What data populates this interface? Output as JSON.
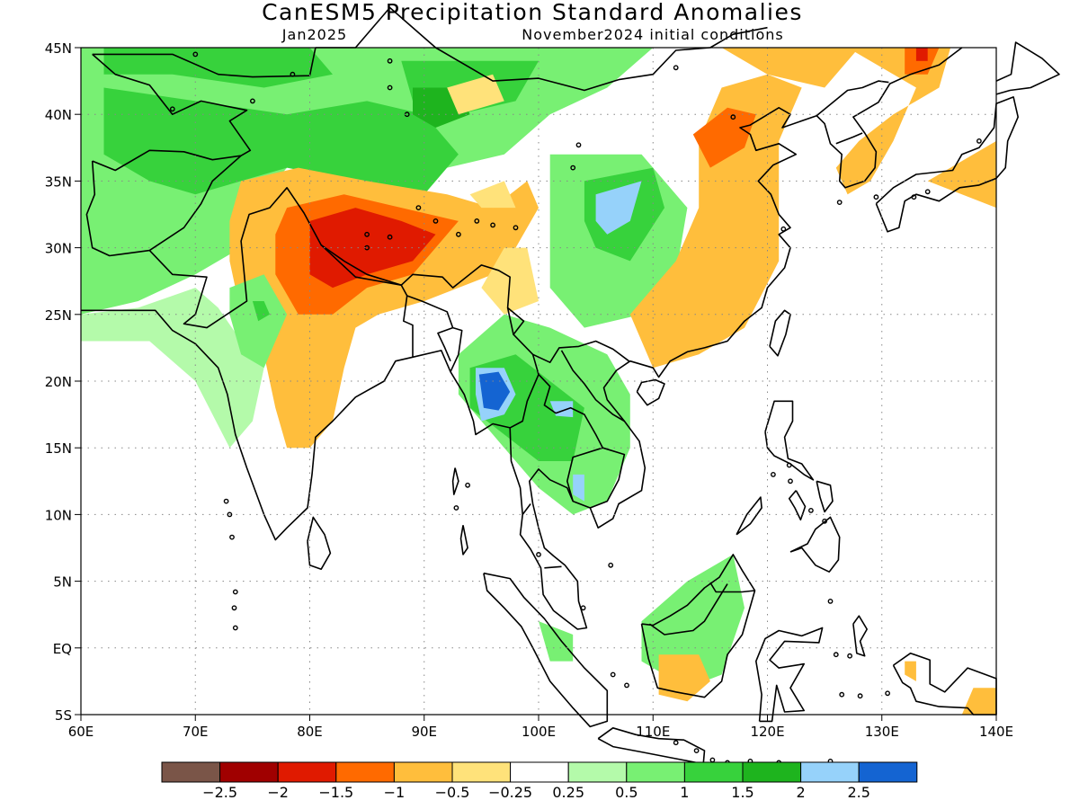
{
  "title": "CanESM5 Precipitation Standard Anomalies",
  "subtitle_left": "Jan2025",
  "subtitle_right": "November2024 initial conditions",
  "map": {
    "lon_range": [
      60,
      140
    ],
    "lat_range": [
      -5,
      45
    ],
    "lon_ticks": [
      {
        "v": 60,
        "label": "60E"
      },
      {
        "v": 70,
        "label": "70E"
      },
      {
        "v": 80,
        "label": "80E"
      },
      {
        "v": 90,
        "label": "90E"
      },
      {
        "v": 100,
        "label": "100E"
      },
      {
        "v": 110,
        "label": "110E"
      },
      {
        "v": 120,
        "label": "120E"
      },
      {
        "v": 130,
        "label": "130E"
      },
      {
        "v": 140,
        "label": "140E"
      }
    ],
    "lat_ticks": [
      {
        "v": 45,
        "label": "45N"
      },
      {
        "v": 40,
        "label": "40N"
      },
      {
        "v": 35,
        "label": "35N"
      },
      {
        "v": 30,
        "label": "30N"
      },
      {
        "v": 25,
        "label": "25N"
      },
      {
        "v": 20,
        "label": "20N"
      },
      {
        "v": 15,
        "label": "15N"
      },
      {
        "v": 10,
        "label": "10N"
      },
      {
        "v": 5,
        "label": "5N"
      },
      {
        "v": 0,
        "label": "EQ"
      },
      {
        "v": -5,
        "label": "5S"
      }
    ],
    "grid": "dotted"
  },
  "colorbar": {
    "colors": [
      "#7a5548",
      "#a00000",
      "#e01a00",
      "#ff6a00",
      "#ffbe3c",
      "#ffe27a",
      "#ffffff",
      "#b4faaa",
      "#78f073",
      "#37d23c",
      "#1eb41e",
      "#96d2fa",
      "#1464d2"
    ],
    "labels": [
      "-2.5",
      "-2",
      "-1.5",
      "-1",
      "-0.5",
      "-0.25",
      "0.25",
      "0.5",
      "1",
      "1.5",
      "2",
      "2.5"
    ]
  }
}
